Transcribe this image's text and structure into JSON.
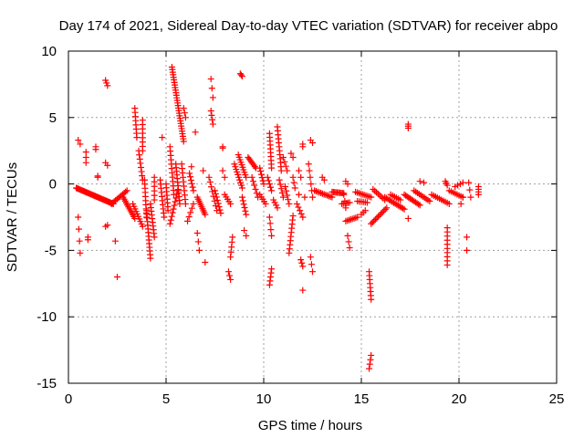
{
  "chart_data": {
    "type": "scatter",
    "title": "Day 174 of 2021, Sidereal Day-to-day VTEC variation (SDTVAR) for receiver abpo",
    "xlabel": "GPS time / hours",
    "ylabel": "SDTVAR / TECUs",
    "xlim": [
      0,
      25
    ],
    "ylim": [
      -15,
      10
    ],
    "xticks": [
      0,
      5,
      10,
      15,
      20,
      25
    ],
    "yticks": [
      -15,
      -10,
      -5,
      0,
      5,
      10
    ],
    "xtick_labels": [
      "0",
      "5",
      "10",
      "15",
      "20",
      "25"
    ],
    "ytick_labels": [
      "-15",
      "-10",
      "-5",
      "0",
      "5",
      "10"
    ],
    "grid": true,
    "marker": "+",
    "color": "#ff0000",
    "series": [
      {
        "name": "SDTVAR",
        "tracks": [
          {
            "x0": 0.4,
            "y0": -0.3,
            "x1": 2.3,
            "y1": -1.5,
            "n": 40
          },
          {
            "x0": 0.5,
            "y0": 3.3,
            "x1": 0.6,
            "y1": 3.0,
            "n": 2
          },
          {
            "x0": 0.5,
            "y0": -2.5,
            "x1": 0.6,
            "y1": -5.2,
            "n": 4
          },
          {
            "x0": 0.9,
            "y0": 2.4,
            "x1": 0.9,
            "y1": 1.6,
            "n": 3
          },
          {
            "x0": 1.0,
            "y0": -4.0,
            "x1": 1.0,
            "y1": -4.2,
            "n": 2
          },
          {
            "x0": 1.4,
            "y0": 2.8,
            "x1": 1.4,
            "y1": 2.6,
            "n": 2
          },
          {
            "x0": 1.5,
            "y0": 0.6,
            "x1": 1.5,
            "y1": 0.5,
            "n": 2
          },
          {
            "x0": 1.9,
            "y0": 7.8,
            "x1": 2.0,
            "y1": 7.4,
            "n": 3
          },
          {
            "x0": 1.9,
            "y0": 1.6,
            "x1": 2.0,
            "y1": 1.4,
            "n": 2
          },
          {
            "x0": 1.9,
            "y0": -3.2,
            "x1": 2.0,
            "y1": -3.1,
            "n": 2
          },
          {
            "x0": 2.4,
            "y0": -4.3,
            "x1": 2.4,
            "y1": -4.3,
            "n": 1
          },
          {
            "x0": 2.5,
            "y0": -7.0,
            "x1": 2.5,
            "y1": -7.0,
            "n": 1
          },
          {
            "x0": 2.2,
            "y0": -1.5,
            "x1": 3.0,
            "y1": -0.5,
            "n": 12
          },
          {
            "x0": 2.8,
            "y0": -1.0,
            "x1": 3.4,
            "y1": -2.6,
            "n": 12
          },
          {
            "x0": 3.3,
            "y0": -1.5,
            "x1": 3.8,
            "y1": -3.2,
            "n": 10
          },
          {
            "x0": 3.4,
            "y0": 5.7,
            "x1": 3.5,
            "y1": 3.5,
            "n": 8
          },
          {
            "x0": 3.6,
            "y0": 2.5,
            "x1": 3.8,
            "y1": 0.3,
            "n": 8
          },
          {
            "x0": 3.8,
            "y0": 4.8,
            "x1": 3.8,
            "y1": 2.5,
            "n": 8
          },
          {
            "x0": 3.9,
            "y0": 0.3,
            "x1": 4.0,
            "y1": -2.5,
            "n": 10
          },
          {
            "x0": 4.0,
            "y0": -2.0,
            "x1": 4.2,
            "y1": -5.6,
            "n": 14
          },
          {
            "x0": 4.2,
            "y0": -1.5,
            "x1": 4.4,
            "y1": -4.0,
            "n": 10
          },
          {
            "x0": 4.4,
            "y0": 0.5,
            "x1": 4.4,
            "y1": -1.2,
            "n": 6
          },
          {
            "x0": 4.8,
            "y0": 3.5,
            "x1": 4.8,
            "y1": 3.5,
            "n": 1
          },
          {
            "x0": 4.7,
            "y0": 0.3,
            "x1": 4.9,
            "y1": -2.5,
            "n": 10
          },
          {
            "x0": 5.0,
            "y0": 0.0,
            "x1": 5.1,
            "y1": -2.0,
            "n": 8
          },
          {
            "x0": 5.2,
            "y0": 2.8,
            "x1": 5.4,
            "y1": -0.8,
            "n": 12
          },
          {
            "x0": 5.3,
            "y0": 8.8,
            "x1": 5.9,
            "y1": 3.2,
            "n": 30
          },
          {
            "x0": 5.5,
            "y0": 1.5,
            "x1": 5.7,
            "y1": -1.5,
            "n": 12
          },
          {
            "x0": 5.6,
            "y0": -0.5,
            "x1": 5.2,
            "y1": -3.0,
            "n": 10
          },
          {
            "x0": 5.9,
            "y0": 5.7,
            "x1": 6.0,
            "y1": 5.0,
            "n": 3
          },
          {
            "x0": 5.8,
            "y0": 1.5,
            "x1": 6.0,
            "y1": -1.5,
            "n": 10
          },
          {
            "x0": 6.2,
            "y0": 0.8,
            "x1": 6.4,
            "y1": -0.5,
            "n": 6
          },
          {
            "x0": 6.3,
            "y0": 1.3,
            "x1": 6.3,
            "y1": 1.3,
            "n": 1
          },
          {
            "x0": 6.5,
            "y0": 3.9,
            "x1": 6.5,
            "y1": 3.9,
            "n": 1
          },
          {
            "x0": 6.6,
            "y0": -3.7,
            "x1": 6.7,
            "y1": -5.0,
            "n": 3
          },
          {
            "x0": 6.1,
            "y0": -2.8,
            "x1": 6.4,
            "y1": -1.5,
            "n": 5
          },
          {
            "x0": 6.6,
            "y0": -1.0,
            "x1": 7.0,
            "y1": -2.3,
            "n": 10
          },
          {
            "x0": 6.9,
            "y0": 1.0,
            "x1": 6.9,
            "y1": 1.0,
            "n": 1
          },
          {
            "x0": 7.3,
            "y0": 7.9,
            "x1": 7.4,
            "y1": 6.5,
            "n": 3
          },
          {
            "x0": 7.3,
            "y0": 5.5,
            "x1": 7.4,
            "y1": 4.5,
            "n": 4
          },
          {
            "x0": 7.0,
            "y0": -5.9,
            "x1": 7.0,
            "y1": -5.9,
            "n": 1
          },
          {
            "x0": 7.2,
            "y0": 0.5,
            "x1": 7.6,
            "y1": -2.0,
            "n": 8
          },
          {
            "x0": 7.5,
            "y0": -0.5,
            "x1": 7.8,
            "y1": -2.2,
            "n": 8
          },
          {
            "x0": 7.9,
            "y0": 2.8,
            "x1": 7.9,
            "y1": 2.7,
            "n": 2
          },
          {
            "x0": 7.9,
            "y0": 1.0,
            "x1": 8.0,
            "y1": 0.5,
            "n": 2
          },
          {
            "x0": 8.0,
            "y0": -0.8,
            "x1": 8.3,
            "y1": -1.5,
            "n": 5
          },
          {
            "x0": 8.4,
            "y0": -4.0,
            "x1": 8.3,
            "y1": -5.5,
            "n": 5
          },
          {
            "x0": 8.2,
            "y0": -6.6,
            "x1": 8.3,
            "y1": -7.2,
            "n": 3
          },
          {
            "x0": 8.5,
            "y0": 1.5,
            "x1": 8.9,
            "y1": -0.3,
            "n": 10
          },
          {
            "x0": 8.7,
            "y0": 2.2,
            "x1": 9.1,
            "y1": 0.5,
            "n": 10
          },
          {
            "x0": 8.8,
            "y0": 8.3,
            "x1": 8.9,
            "y1": 8.1,
            "n": 3
          },
          {
            "x0": 8.9,
            "y0": -1.0,
            "x1": 9.1,
            "y1": -2.3,
            "n": 6
          },
          {
            "x0": 9.0,
            "y0": -3.5,
            "x1": 9.1,
            "y1": -3.9,
            "n": 2
          },
          {
            "x0": 9.2,
            "y0": 2.0,
            "x1": 9.6,
            "y1": 1.2,
            "n": 8
          },
          {
            "x0": 9.4,
            "y0": 0.5,
            "x1": 9.7,
            "y1": -1.0,
            "n": 6
          },
          {
            "x0": 9.8,
            "y0": 1.2,
            "x1": 10.0,
            "y1": 0.0,
            "n": 6
          },
          {
            "x0": 9.8,
            "y0": -0.8,
            "x1": 10.1,
            "y1": -1.5,
            "n": 5
          },
          {
            "x0": 10.2,
            "y0": 0.5,
            "x1": 10.4,
            "y1": -0.5,
            "n": 5
          },
          {
            "x0": 10.3,
            "y0": 3.8,
            "x1": 10.4,
            "y1": 1.2,
            "n": 10
          },
          {
            "x0": 10.3,
            "y0": -2.5,
            "x1": 10.4,
            "y1": -3.9,
            "n": 4
          },
          {
            "x0": 10.4,
            "y0": -6.4,
            "x1": 10.3,
            "y1": -7.6,
            "n": 5
          },
          {
            "x0": 10.5,
            "y0": -1.2,
            "x1": 10.7,
            "y1": -1.8,
            "n": 4
          },
          {
            "x0": 10.7,
            "y0": 4.3,
            "x1": 10.9,
            "y1": 1.0,
            "n": 12
          },
          {
            "x0": 10.8,
            "y0": 0.3,
            "x1": 11.0,
            "y1": -1.0,
            "n": 5
          },
          {
            "x0": 11.0,
            "y0": 2.0,
            "x1": 11.2,
            "y1": 1.0,
            "n": 4
          },
          {
            "x0": 11.1,
            "y0": -0.2,
            "x1": 11.3,
            "y1": -1.5,
            "n": 5
          },
          {
            "x0": 11.5,
            "y0": -2.4,
            "x1": 11.3,
            "y1": -5.2,
            "n": 10
          },
          {
            "x0": 11.4,
            "y0": 2.3,
            "x1": 11.5,
            "y1": 2.0,
            "n": 2
          },
          {
            "x0": 11.5,
            "y0": 0.5,
            "x1": 11.6,
            "y1": -0.3,
            "n": 3
          },
          {
            "x0": 11.7,
            "y0": -1.5,
            "x1": 12.0,
            "y1": -2.5,
            "n": 5
          },
          {
            "x0": 11.8,
            "y0": -0.8,
            "x1": 11.9,
            "y1": -0.8,
            "n": 1
          },
          {
            "x0": 11.8,
            "y0": 1.0,
            "x1": 11.9,
            "y1": 0.5,
            "n": 2
          },
          {
            "x0": 12.0,
            "y0": 3.0,
            "x1": 12.0,
            "y1": 2.8,
            "n": 2
          },
          {
            "x0": 12.1,
            "y0": -1.0,
            "x1": 12.2,
            "y1": -1.0,
            "n": 1
          },
          {
            "x0": 11.9,
            "y0": -5.7,
            "x1": 12.0,
            "y1": -6.2,
            "n": 3
          },
          {
            "x0": 12.0,
            "y0": -8.0,
            "x1": 12.0,
            "y1": -8.0,
            "n": 1
          },
          {
            "x0": 12.3,
            "y0": 1.5,
            "x1": 12.5,
            "y1": -1.0,
            "n": 6
          },
          {
            "x0": 12.4,
            "y0": 3.3,
            "x1": 12.5,
            "y1": 3.1,
            "n": 2
          },
          {
            "x0": 12.4,
            "y0": -5.5,
            "x1": 12.5,
            "y1": -6.6,
            "n": 3
          },
          {
            "x0": 12.6,
            "y0": -0.5,
            "x1": 13.5,
            "y1": -1.0,
            "n": 12
          },
          {
            "x0": 13.0,
            "y0": 0.5,
            "x1": 13.1,
            "y1": 0.3,
            "n": 2
          },
          {
            "x0": 13.5,
            "y0": -0.6,
            "x1": 14.1,
            "y1": -0.7,
            "n": 10
          },
          {
            "x0": 14.0,
            "y0": -1.5,
            "x1": 14.4,
            "y1": -1.4,
            "n": 6
          },
          {
            "x0": 14.1,
            "y0": -0.8,
            "x1": 14.2,
            "y1": -1.8,
            "n": 3
          },
          {
            "x0": 14.2,
            "y0": 0.2,
            "x1": 14.3,
            "y1": 0.0,
            "n": 2
          },
          {
            "x0": 14.2,
            "y0": -2.8,
            "x1": 14.8,
            "y1": -2.5,
            "n": 8
          },
          {
            "x0": 14.3,
            "y0": -3.9,
            "x1": 14.4,
            "y1": -4.8,
            "n": 3
          },
          {
            "x0": 14.7,
            "y0": -0.6,
            "x1": 15.5,
            "y1": -1.0,
            "n": 10
          },
          {
            "x0": 14.8,
            "y0": -1.3,
            "x1": 15.3,
            "y1": -1.4,
            "n": 6
          },
          {
            "x0": 15.0,
            "y0": -2.3,
            "x1": 15.2,
            "y1": -2.0,
            "n": 3
          },
          {
            "x0": 15.5,
            "y0": -3.0,
            "x1": 16.3,
            "y1": -1.8,
            "n": 12
          },
          {
            "x0": 15.4,
            "y0": -6.6,
            "x1": 15.5,
            "y1": -8.7,
            "n": 8
          },
          {
            "x0": 15.5,
            "y0": -12.9,
            "x1": 15.4,
            "y1": -13.9,
            "n": 4
          },
          {
            "x0": 15.6,
            "y0": -0.4,
            "x1": 16.2,
            "y1": -1.2,
            "n": 8
          },
          {
            "x0": 16.2,
            "y0": -1.0,
            "x1": 17.2,
            "y1": -1.9,
            "n": 14
          },
          {
            "x0": 16.5,
            "y0": -0.8,
            "x1": 17.0,
            "y1": -1.2,
            "n": 6
          },
          {
            "x0": 17.2,
            "y0": -0.8,
            "x1": 18.0,
            "y1": -1.6,
            "n": 12
          },
          {
            "x0": 17.4,
            "y0": 4.5,
            "x1": 17.4,
            "y1": 4.2,
            "n": 3
          },
          {
            "x0": 17.4,
            "y0": -2.6,
            "x1": 17.5,
            "y1": -2.6,
            "n": 1
          },
          {
            "x0": 17.7,
            "y0": -0.5,
            "x1": 18.5,
            "y1": -1.3,
            "n": 10
          },
          {
            "x0": 18.0,
            "y0": 0.2,
            "x1": 18.2,
            "y1": 0.1,
            "n": 2
          },
          {
            "x0": 18.6,
            "y0": -0.8,
            "x1": 19.5,
            "y1": -1.5,
            "n": 10
          },
          {
            "x0": 19.3,
            "y0": 0.2,
            "x1": 19.4,
            "y1": -0.1,
            "n": 3
          },
          {
            "x0": 19.4,
            "y0": -3.3,
            "x1": 19.4,
            "y1": -6.1,
            "n": 10
          },
          {
            "x0": 19.5,
            "y0": -0.5,
            "x1": 20.2,
            "y1": -1.0,
            "n": 8
          },
          {
            "x0": 19.8,
            "y0": -0.2,
            "x1": 20.2,
            "y1": 0.1,
            "n": 4
          },
          {
            "x0": 20.1,
            "y0": -1.5,
            "x1": 20.2,
            "y1": -1.0,
            "n": 2
          },
          {
            "x0": 20.4,
            "y0": -4.0,
            "x1": 20.4,
            "y1": -5.0,
            "n": 2
          },
          {
            "x0": 20.5,
            "y0": 0.1,
            "x1": 20.6,
            "y1": -1.0,
            "n": 3
          },
          {
            "x0": 21.0,
            "y0": -0.2,
            "x1": 21.0,
            "y1": -0.8,
            "n": 4
          }
        ]
      }
    ]
  }
}
